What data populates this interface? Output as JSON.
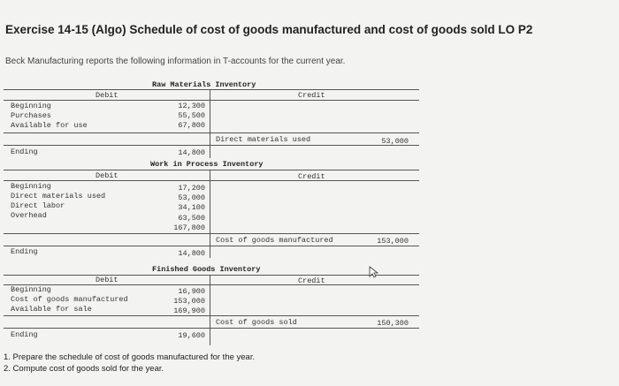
{
  "title": "Exercise 14-15 (Algo) Schedule of cost of goods manufactured and cost of goods sold LO P2",
  "intro": "Beck Manufacturing reports the following information in T-accounts for the current year.",
  "raw_materials": {
    "title": "Raw Materials Inventory",
    "debit_label": "Debit",
    "credit_label": "Credit",
    "rows": [
      {
        "label": "Beginning",
        "value": "12,300"
      },
      {
        "label": "Purchases",
        "value": "55,500"
      },
      {
        "label": "Available for use",
        "value": "67,800"
      }
    ],
    "credit_item": "Direct materials used",
    "credit_value": "53,000",
    "ending_label": "Ending",
    "ending_value": "14,800"
  },
  "wip": {
    "title": "Work in Process Inventory",
    "debit_label": "Debit",
    "credit_label": "Credit",
    "rows": [
      {
        "label": "Beginning",
        "value": "17,200"
      },
      {
        "label": "Direct materials used",
        "value": "53,000"
      },
      {
        "label": "Direct labor",
        "value": "34,100"
      },
      {
        "label": "Overhead",
        "value": "63,500"
      },
      {
        "label": "",
        "value": "167,800"
      }
    ],
    "credit_item": "Cost of goods manufactured",
    "credit_value": "153,000",
    "ending_label": "Ending",
    "ending_value": "14,800"
  },
  "finished_goods": {
    "title": "Finished Goods Inventory",
    "debit_label": "Debit",
    "credit_label": "Credit",
    "rows": [
      {
        "label": "Beginning",
        "value": "16,900"
      },
      {
        "label": "Cost of goods manufactured",
        "value": "153,000"
      },
      {
        "label": "Available for sale",
        "value": "169,900"
      }
    ],
    "credit_item": "Cost of goods sold",
    "credit_value": "150,300",
    "ending_label": "Ending",
    "ending_value": "19,600"
  },
  "questions": [
    "1. Prepare the schedule of cost of goods manufactured for the year.",
    "2. Compute cost of goods sold for the year."
  ]
}
